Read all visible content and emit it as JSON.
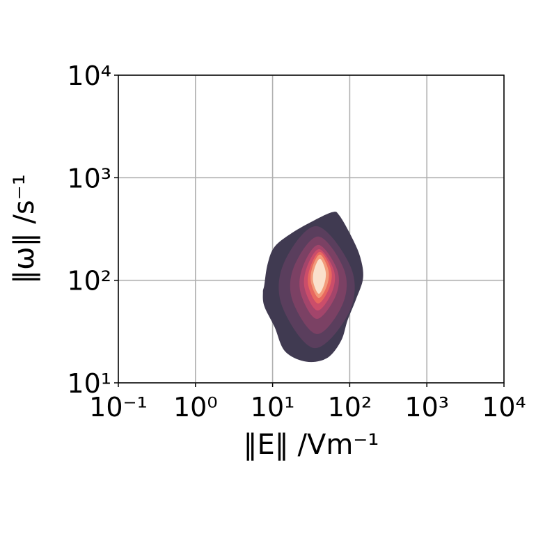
{
  "chart_data": {
    "type": "contour",
    "xlabel": "‖E‖ /Vm⁻¹",
    "ylabel": "‖ω‖ /s⁻¹",
    "xscale": "log",
    "yscale": "log",
    "grid": true,
    "xlim": [
      0.1,
      10000
    ],
    "ylim": [
      10,
      10000
    ],
    "xticks": [
      {
        "value": 0.1,
        "label": "10⁻¹"
      },
      {
        "value": 1,
        "label": "10⁰"
      },
      {
        "value": 10,
        "label": "10¹"
      },
      {
        "value": 100,
        "label": "10²"
      },
      {
        "value": 1000,
        "label": "10³"
      },
      {
        "value": 10000,
        "label": "10⁴"
      }
    ],
    "yticks": [
      {
        "value": 10,
        "label": "10¹"
      },
      {
        "value": 100,
        "label": "10²"
      },
      {
        "value": 1000,
        "label": "10³"
      },
      {
        "value": 10000,
        "label": "10⁴"
      }
    ],
    "contours": [
      {
        "color": "#403a51",
        "x": [
          7.8,
          8.6,
          10.6,
          17.9,
          33.3,
          59.7,
          73.5,
          105,
          137,
          149,
          121,
          94,
          77,
          50.6,
          27.1,
          14.5,
          10.6,
          7.8,
          7.5
        ],
        "y": [
          89.6,
          143,
          212,
          290,
          378,
          462,
          428,
          268,
          168,
          105,
          65.6,
          41,
          25.6,
          17.4,
          16.1,
          20.3,
          35.1,
          56.1,
          76.7
        ]
      },
      {
        "color": "#5a3e5d",
        "x": [
          37.2,
          105,
          98.8,
          34.9,
          13.2,
          14.0
        ],
        "y": [
          337,
          130,
          49.2,
          21.8,
          56.7,
          147
        ]
      },
      {
        "color": "#7b4164",
        "x": [
          39.6,
          85.4,
          80.2,
          37.2,
          18.0,
          19.1
        ],
        "y": [
          267,
          124,
          57.6,
          29.9,
          64.3,
          138
        ]
      },
      {
        "color": "#a3456b",
        "x": [
          39.6,
          69.4,
          65.2,
          37.2,
          23.1,
          24.5
        ],
        "y": [
          221,
          124,
          69.5,
          42.1,
          75.1,
          134
        ]
      },
      {
        "color": "#cb4d6a",
        "x": [
          40.4,
          62.5,
          58.7,
          38.0,
          26.1,
          27.8
        ],
        "y": [
          201,
          124,
          76.3,
          50.8,
          82.6,
          134
        ]
      },
      {
        "color": "#e8685f",
        "x": [
          41.3,
          57.5,
          54.1,
          38.7,
          29.0,
          30.8
        ],
        "y": [
          189,
          126,
          83.8,
          59.4,
          89.2,
          134
        ]
      },
      {
        "color": "#f29a7a",
        "x": [
          41.3,
          52.9,
          50.8,
          39.6,
          31.5,
          32.8
        ],
        "y": [
          178,
          126,
          89.2,
          67.3,
          95.0,
          134
        ]
      },
      {
        "color": "#fae0cc",
        "x": [
          41.3,
          48.7,
          46.8,
          39.6,
          33.5,
          34.9
        ],
        "y": [
          162,
          122,
          92.0,
          74.0,
          98.0,
          130
        ]
      }
    ]
  }
}
